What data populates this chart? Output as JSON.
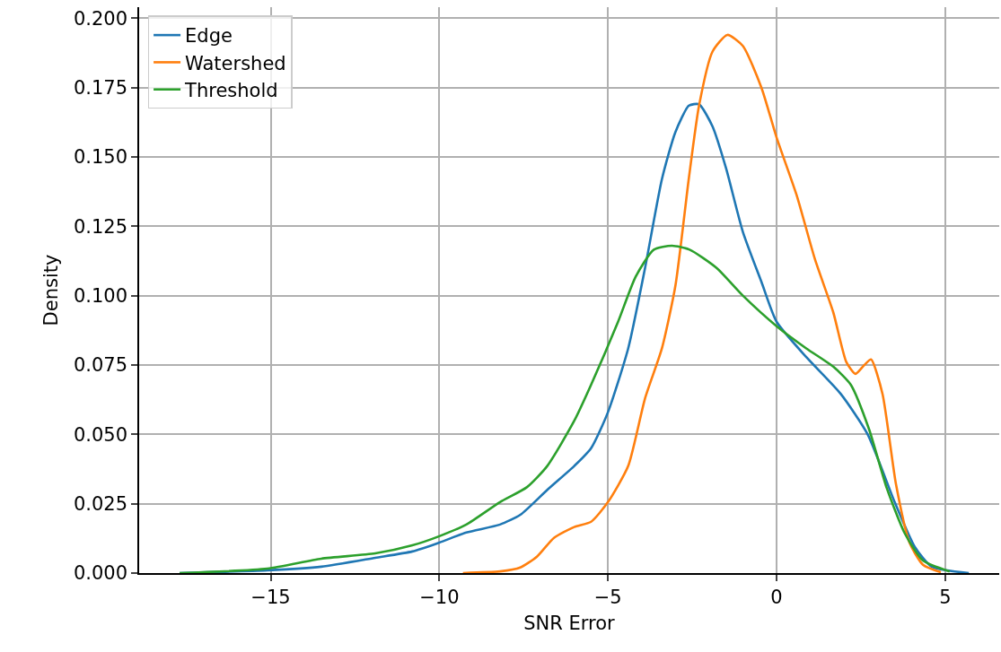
{
  "chart_data": {
    "type": "line",
    "xlabel": "SNR Error",
    "ylabel": "Density",
    "xlim": [
      -18.9,
      6.6
    ],
    "ylim": [
      0,
      0.204
    ],
    "xticks": [
      {
        "value": -15,
        "label": "−15"
      },
      {
        "value": -10,
        "label": "−10"
      },
      {
        "value": -5,
        "label": "−5"
      },
      0,
      5
    ],
    "yticks": [
      {
        "value": 0,
        "label": "0.000"
      },
      {
        "value": 0.025,
        "label": "0.025"
      },
      {
        "value": 0.05,
        "label": "0.050"
      },
      {
        "value": 0.075,
        "label": "0.075"
      },
      {
        "value": 0.1,
        "label": "0.100"
      },
      {
        "value": 0.125,
        "label": "0.125"
      },
      {
        "value": 0.15,
        "label": "0.150"
      },
      {
        "value": 0.175,
        "label": "0.175"
      },
      {
        "value": 0.2,
        "label": "0.200"
      }
    ],
    "grid": true,
    "legend": "top left",
    "marker": "none",
    "line_style": "solid",
    "series": [
      {
        "name": "Edge",
        "color": "#1f77b4",
        "x": [
          -17.7,
          -15.1,
          -13.5,
          -11.9,
          -10.8,
          -10,
          -9.2,
          -8.2,
          -7.6,
          -6.8,
          -6.0,
          -5.5,
          -5.0,
          -4.4,
          -3.9,
          -3.4,
          -3.0,
          -2.6,
          -2.3,
          -1.9,
          -1.5,
          -1.0,
          -0.45,
          0,
          0.9,
          1.9,
          2.7,
          3.5,
          4.1,
          4.6,
          5.7
        ],
        "values": [
          0,
          0.001,
          0.0023,
          0.0055,
          0.0078,
          0.011,
          0.0146,
          0.0175,
          0.021,
          0.03,
          0.0386,
          0.045,
          0.058,
          0.081,
          0.11,
          0.142,
          0.159,
          0.1685,
          0.169,
          0.161,
          0.146,
          0.123,
          0.105,
          0.0906,
          0.0776,
          0.0646,
          0.05,
          0.0256,
          0.0094,
          0.0023,
          0
        ]
      },
      {
        "name": "Watershed",
        "color": "#ff7f0e",
        "x": [
          -9.3,
          -8.2,
          -7.6,
          -7.1,
          -6.6,
          -6.0,
          -5.5,
          -5.0,
          -4.4,
          -3.9,
          -3.4,
          -3.0,
          -2.6,
          -2.3,
          -1.9,
          -1.46,
          -1.0,
          -0.45,
          0,
          0.6,
          1.14,
          1.68,
          2.07,
          2.34,
          2.6,
          2.8,
          3.14,
          3.54,
          3.94,
          4.34,
          4.87
        ],
        "values": [
          0,
          0.0006,
          0.002,
          0.006,
          0.0127,
          0.0166,
          0.0185,
          0.0256,
          0.0386,
          0.063,
          0.081,
          0.1036,
          0.1425,
          0.1685,
          0.188,
          0.194,
          0.19,
          0.175,
          0.157,
          0.136,
          0.113,
          0.094,
          0.076,
          0.0718,
          0.075,
          0.077,
          0.0646,
          0.032,
          0.011,
          0.003,
          0.0003
        ]
      },
      {
        "name": "Threshold",
        "color": "#2ca02c",
        "x": [
          -17.7,
          -15.1,
          -13.5,
          -11.9,
          -10.8,
          -10,
          -9.2,
          -8.2,
          -7.4,
          -6.8,
          -6.0,
          -5.5,
          -4.7,
          -4.18,
          -3.64,
          -3.1,
          -2.58,
          -1.78,
          -1.0,
          0,
          0.88,
          1.68,
          2.2,
          2.74,
          3.27,
          3.8,
          4.34,
          5.13
        ],
        "values": [
          0,
          0.0016,
          0.0052,
          0.0071,
          0.01,
          0.0133,
          0.0175,
          0.0256,
          0.031,
          0.0386,
          0.0549,
          0.0679,
          0.0906,
          0.1068,
          0.1166,
          0.118,
          0.1166,
          0.11,
          0.1,
          0.089,
          0.081,
          0.0744,
          0.0679,
          0.0519,
          0.0305,
          0.0143,
          0.0045,
          0.0006
        ]
      }
    ]
  }
}
